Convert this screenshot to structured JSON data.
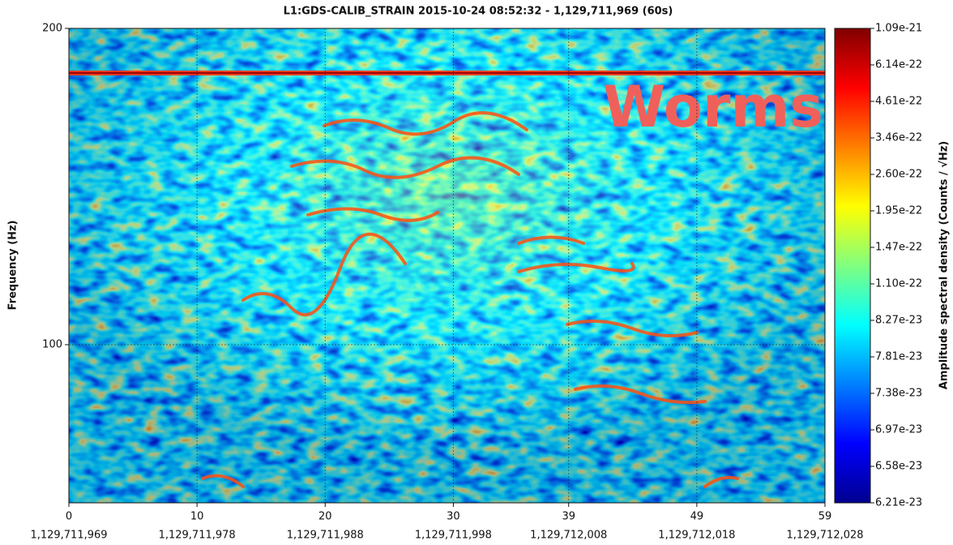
{
  "chart_data": {
    "type": "spectrogram",
    "title": "L1:GDS-CALIB_STRAIN 2015-10-24 08:52:32 - 1,129,711,969 (60s)",
    "ylabel": "Frequency (Hz)",
    "xlim": [
      0,
      59
    ],
    "xticks": [
      0,
      10,
      20,
      30,
      39,
      49,
      59
    ],
    "xtick_gps_labels": [
      "1,129,711,969",
      "1,129,711,978",
      "1,129,711,988",
      "1,129,711,998",
      "1,129,712,008",
      "1,129,712,018",
      "1,129,712,028"
    ],
    "ylim": [
      50,
      200
    ],
    "yticks": [
      100,
      200
    ],
    "grid": true,
    "colorbar": {
      "label": "Amplitude spectral density (Counts / √Hz)",
      "ticks": [
        1.09e-21,
        6.14e-22,
        4.61e-22,
        3.46e-22,
        {
          "value": 2.6e-22,
          "label": "2.60e-22"
        },
        1.95e-22,
        1.47e-22,
        {
          "value": 1.1e-22,
          "label": "1.10e-22"
        },
        8.27e-23,
        7.81e-23,
        7.38e-23,
        6.97e-23,
        6.58e-23,
        6.21e-23
      ]
    },
    "annotation": "Worms"
  }
}
